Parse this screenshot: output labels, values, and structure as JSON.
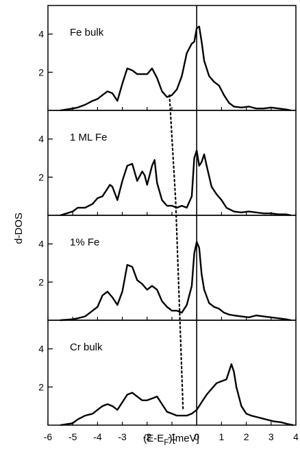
{
  "chart_data": {
    "type": "line",
    "xlabel": "(E-E",
    "xlabel_sub": "F",
    "xlabel_tail": ")[meV]",
    "ylabel": "d-DOS",
    "xlim": [
      -6,
      4
    ],
    "xticks": [
      "-6",
      "-5",
      "-4",
      "-3",
      "-2",
      "-1",
      "0",
      "1",
      "2",
      "3",
      "4"
    ],
    "vertical_line_x": 0,
    "dotted_guide": [
      [
        -1.1,
        4
      ],
      [
        -0.85,
        3
      ],
      [
        -0.7,
        2
      ],
      [
        -0.55,
        1
      ]
    ],
    "panels": [
      {
        "label": "Fe bulk",
        "ylim": [
          0,
          5.5
        ],
        "yticks": [
          "2",
          "4"
        ],
        "x": [
          -5.5,
          -5.0,
          -4.8,
          -4.5,
          -4.2,
          -4.0,
          -3.8,
          -3.6,
          -3.4,
          -3.2,
          -3.0,
          -2.8,
          -2.6,
          -2.4,
          -2.2,
          -2.0,
          -1.8,
          -1.6,
          -1.4,
          -1.2,
          -1.0,
          -0.8,
          -0.6,
          -0.4,
          -0.2,
          -0.1,
          0.0,
          0.1,
          0.2,
          0.3,
          0.5,
          0.7,
          0.9,
          1.1,
          1.3,
          1.5,
          1.8,
          2.1,
          2.4,
          2.7,
          3.0,
          3.3,
          3.6,
          3.8
        ],
        "y": [
          0.0,
          0.1,
          0.15,
          0.3,
          0.5,
          0.6,
          0.8,
          1.0,
          0.9,
          0.5,
          1.4,
          2.2,
          2.1,
          1.9,
          1.9,
          1.9,
          2.2,
          1.7,
          1.0,
          0.7,
          0.8,
          1.1,
          1.8,
          3.0,
          3.5,
          3.6,
          4.3,
          4.4,
          3.6,
          2.6,
          1.8,
          1.5,
          1.3,
          0.8,
          0.4,
          0.2,
          0.15,
          0.2,
          0.1,
          0.1,
          0.15,
          0.1,
          0.05,
          0.0
        ]
      },
      {
        "label": "1 ML Fe",
        "ylim": [
          0,
          5.5
        ],
        "yticks": [
          "2",
          "4"
        ],
        "x": [
          -5.5,
          -5.0,
          -4.8,
          -4.5,
          -4.2,
          -4.0,
          -3.8,
          -3.6,
          -3.5,
          -3.4,
          -3.2,
          -3.0,
          -2.8,
          -2.6,
          -2.4,
          -2.2,
          -2.1,
          -2.0,
          -1.8,
          -1.7,
          -1.6,
          -1.4,
          -1.2,
          -1.0,
          -0.8,
          -0.6,
          -0.4,
          -0.2,
          -0.1,
          0.0,
          0.1,
          0.2,
          0.3,
          0.4,
          0.6,
          0.8,
          1.0,
          1.2,
          1.5,
          1.8,
          2.1,
          2.4,
          2.7,
          3.0,
          3.3,
          3.6,
          3.8
        ],
        "y": [
          0.0,
          0.2,
          0.4,
          0.4,
          0.6,
          0.9,
          1.0,
          1.4,
          1.6,
          1.5,
          0.8,
          1.8,
          2.6,
          2.7,
          1.8,
          2.3,
          2.1,
          1.6,
          2.6,
          2.9,
          1.7,
          0.8,
          0.5,
          0.5,
          0.4,
          0.5,
          0.4,
          1.0,
          3.0,
          3.4,
          2.6,
          2.8,
          3.2,
          2.6,
          1.5,
          1.1,
          0.8,
          0.4,
          0.2,
          0.15,
          0.2,
          0.15,
          0.1,
          0.1,
          0.05,
          0.05,
          0.0
        ]
      },
      {
        "label": "1% Fe",
        "ylim": [
          0,
          5.5
        ],
        "yticks": [
          "2",
          "4"
        ],
        "x": [
          -5.5,
          -5.0,
          -4.8,
          -4.5,
          -4.2,
          -4.0,
          -3.8,
          -3.6,
          -3.4,
          -3.2,
          -3.0,
          -2.8,
          -2.6,
          -2.4,
          -2.2,
          -2.0,
          -1.8,
          -1.6,
          -1.4,
          -1.2,
          -1.0,
          -0.8,
          -0.6,
          -0.4,
          -0.2,
          -0.1,
          0.0,
          0.1,
          0.2,
          0.3,
          0.5,
          0.7,
          0.9,
          1.1,
          1.3,
          1.5,
          1.8,
          2.1,
          2.4,
          2.7,
          3.0,
          3.3,
          3.6,
          3.8
        ],
        "y": [
          0.0,
          0.05,
          0.1,
          0.2,
          0.5,
          0.7,
          1.3,
          1.5,
          1.2,
          0.8,
          1.5,
          2.9,
          2.8,
          2.1,
          1.9,
          1.6,
          1.8,
          1.6,
          1.0,
          0.7,
          0.5,
          0.5,
          0.4,
          0.8,
          1.8,
          3.5,
          4.1,
          3.8,
          2.4,
          1.6,
          0.9,
          0.7,
          0.6,
          0.4,
          0.3,
          0.25,
          0.2,
          0.15,
          0.25,
          0.2,
          0.15,
          0.1,
          0.05,
          0.0
        ]
      },
      {
        "label": "Cr bulk",
        "ylim": [
          0,
          5.5
        ],
        "yticks": [
          "2",
          "4"
        ],
        "x": [
          -5.5,
          -5.0,
          -4.8,
          -4.5,
          -4.2,
          -4.0,
          -3.8,
          -3.6,
          -3.4,
          -3.2,
          -3.0,
          -2.8,
          -2.6,
          -2.4,
          -2.2,
          -2.0,
          -1.8,
          -1.6,
          -1.4,
          -1.2,
          -1.0,
          -0.8,
          -0.6,
          -0.4,
          -0.2,
          0.0,
          0.2,
          0.4,
          0.6,
          0.8,
          1.0,
          1.2,
          1.4,
          1.5,
          1.6,
          1.8,
          2.0,
          2.2,
          2.5,
          2.8,
          3.1,
          3.4,
          3.7,
          3.9
        ],
        "y": [
          0.0,
          0.1,
          0.3,
          0.5,
          0.6,
          0.8,
          1.0,
          1.1,
          1.0,
          0.8,
          1.2,
          1.6,
          1.7,
          1.5,
          1.3,
          1.3,
          1.4,
          1.5,
          1.1,
          0.7,
          0.6,
          0.5,
          0.5,
          0.5,
          0.6,
          0.8,
          1.2,
          1.6,
          1.9,
          2.2,
          2.3,
          2.4,
          3.2,
          2.8,
          2.0,
          1.0,
          0.6,
          0.5,
          0.4,
          0.3,
          0.2,
          0.15,
          0.05,
          0.0
        ]
      }
    ]
  }
}
